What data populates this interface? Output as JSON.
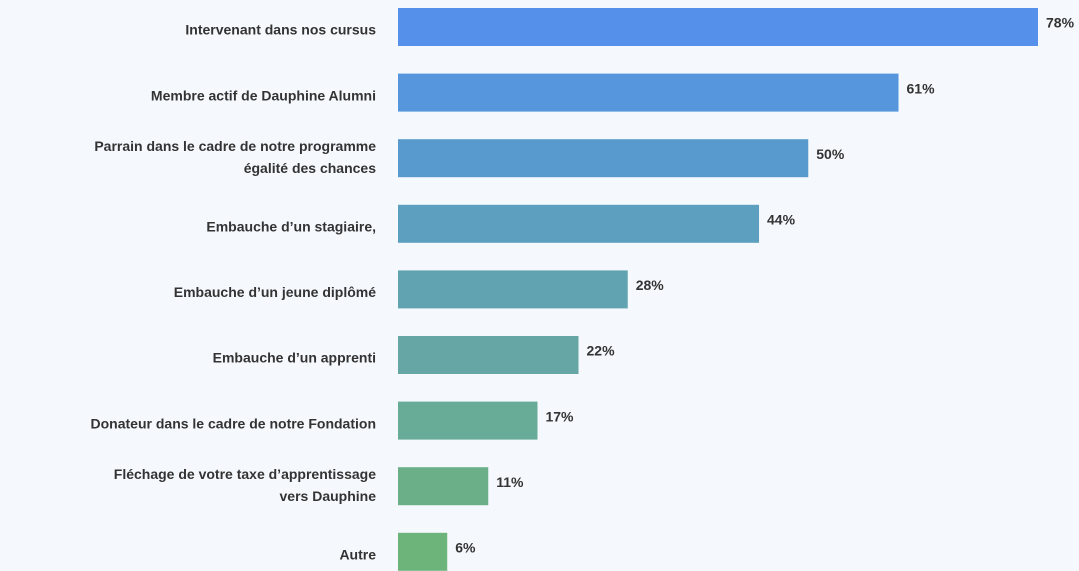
{
  "chart_data": {
    "type": "bar",
    "orientation": "horizontal",
    "categories": [
      "Intervenant dans nos cursus",
      "Membre actif de Dauphine Alumni",
      [
        "Parrain dans le cadre de notre programme",
        "égalité des chances"
      ],
      "Embauche d’un stagiaire,",
      "Embauche d’un jeune diplômé",
      "Embauche d’un apprenti",
      "Donateur dans le cadre de notre Fondation",
      [
        "Fléchage de votre taxe d’apprentissage",
        "vers Dauphine"
      ],
      "Autre"
    ],
    "values": [
      78,
      61,
      50,
      44,
      28,
      22,
      17,
      11,
      6
    ],
    "value_labels": [
      "78%",
      "61%",
      "50%",
      "44%",
      "28%",
      "22%",
      "17%",
      "11%",
      "6%"
    ],
    "colors": [
      "#5591ea",
      "#5596dc",
      "#589acd",
      "#5d9fbf",
      "#62a3b2",
      "#66a7a5",
      "#68ab96",
      "#6aaf88",
      "#6db47a"
    ]
  }
}
